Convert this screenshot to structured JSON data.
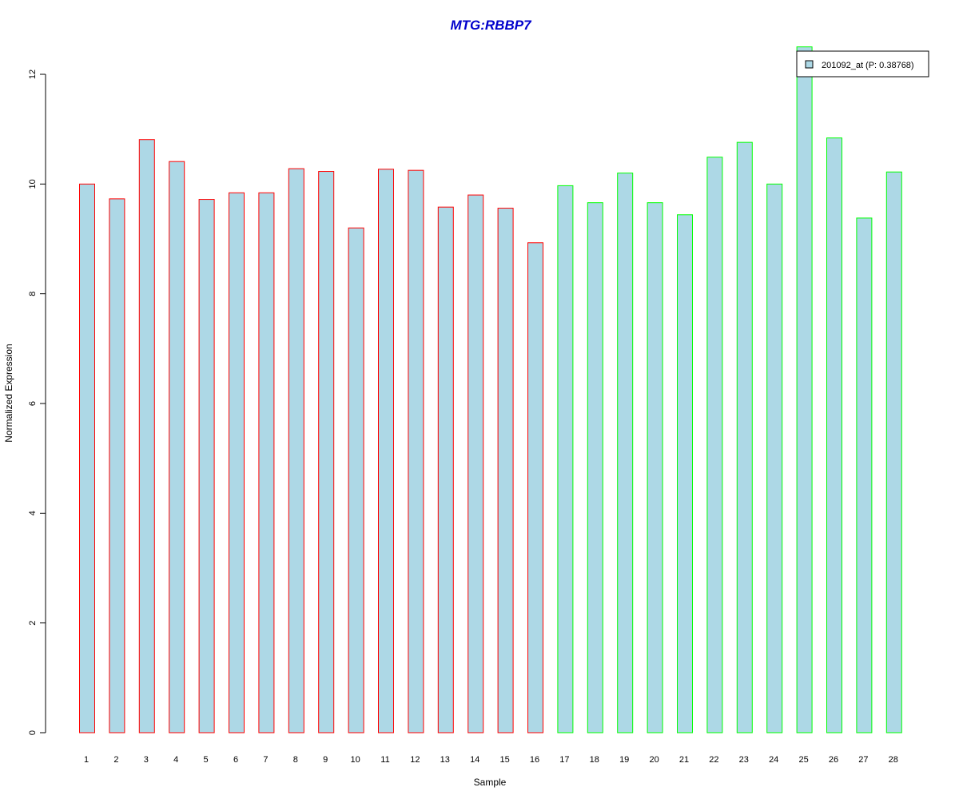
{
  "chart_data": {
    "type": "bar",
    "title": "MTG:RBBP7",
    "xlabel": "Sample",
    "ylabel": "Normalized Expression",
    "ylim": [
      0,
      12.5
    ],
    "yticks": [
      "0",
      "2",
      "4",
      "6",
      "8",
      "10",
      "12"
    ],
    "categories": [
      "1",
      "2",
      "3",
      "4",
      "5",
      "6",
      "7",
      "8",
      "9",
      "10",
      "11",
      "12",
      "13",
      "14",
      "15",
      "16",
      "17",
      "18",
      "19",
      "20",
      "21",
      "22",
      "23",
      "24",
      "25",
      "26",
      "27",
      "28"
    ],
    "series": [
      {
        "name": "201092_at (P: 0.38768)",
        "values": [
          10.0,
          9.73,
          10.81,
          10.41,
          9.72,
          9.84,
          9.84,
          10.28,
          10.23,
          9.2,
          10.27,
          10.25,
          9.58,
          9.8,
          9.56,
          8.93,
          9.97,
          9.66,
          10.2,
          9.66,
          9.44,
          10.49,
          10.76,
          10.0,
          12.5,
          10.84,
          9.38,
          10.22
        ]
      }
    ],
    "group_sizes": [
      16,
      12
    ],
    "colors": {
      "bar_fill": "#add8e6",
      "group1_border": "#ff0000",
      "group2_border": "#00ff00",
      "title": "#0000cc"
    },
    "legend_position": "top-right",
    "grid": false
  }
}
